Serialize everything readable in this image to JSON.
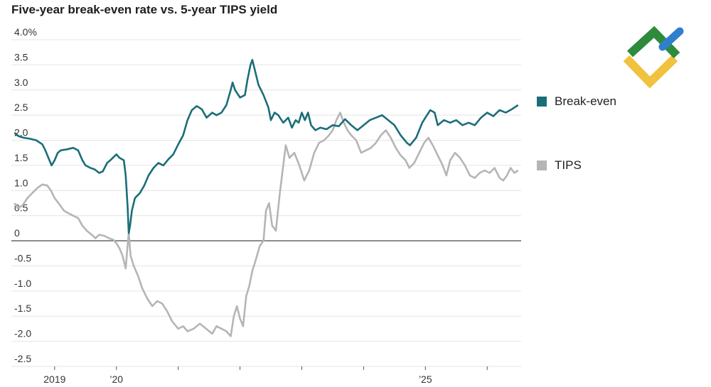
{
  "chart_data": {
    "type": "line",
    "title": "Five-year break-even rate vs. 5-year TIPS yield",
    "xlabel": "",
    "ylabel": "",
    "xlim": [
      2018.3,
      2026.55
    ],
    "ylim": [
      -2.5,
      4.0
    ],
    "y_ticks": [
      {
        "value": 4.0,
        "label": "4.0%"
      },
      {
        "value": 3.5,
        "label": "3.5"
      },
      {
        "value": 3.0,
        "label": "3.0"
      },
      {
        "value": 2.5,
        "label": "2.5"
      },
      {
        "value": 2.0,
        "label": "2.0"
      },
      {
        "value": 1.5,
        "label": "1.5"
      },
      {
        "value": 1.0,
        "label": "1.0"
      },
      {
        "value": 0.5,
        "label": "0.5"
      },
      {
        "value": 0,
        "label": "0"
      },
      {
        "value": -0.5,
        "label": "-0.5"
      },
      {
        "value": -1.0,
        "label": "-1.0"
      },
      {
        "value": -1.5,
        "label": "-1.5"
      },
      {
        "value": -2.0,
        "label": "-2.0"
      },
      {
        "value": -2.5,
        "label": "-2.5"
      }
    ],
    "x_ticks": [
      {
        "value": 2019,
        "label": "2019"
      },
      {
        "value": 2020,
        "label": "’20"
      },
      {
        "value": 2021,
        "label": ""
      },
      {
        "value": 2022,
        "label": ""
      },
      {
        "value": 2023,
        "label": ""
      },
      {
        "value": 2024,
        "label": ""
      },
      {
        "value": 2025,
        "label": "’25"
      },
      {
        "value": 2026,
        "label": ""
      }
    ],
    "grid": true,
    "legend_position": "right",
    "series": [
      {
        "name": "Break-even",
        "color": "#1a6e78",
        "points": [
          [
            2018.35,
            2.15
          ],
          [
            2018.42,
            2.08
          ],
          [
            2018.5,
            2.05
          ],
          [
            2018.6,
            2.03
          ],
          [
            2018.7,
            2.0
          ],
          [
            2018.8,
            1.92
          ],
          [
            2018.85,
            1.8
          ],
          [
            2018.9,
            1.65
          ],
          [
            2018.95,
            1.5
          ],
          [
            2019.0,
            1.6
          ],
          [
            2019.05,
            1.75
          ],
          [
            2019.1,
            1.8
          ],
          [
            2019.2,
            1.82
          ],
          [
            2019.3,
            1.85
          ],
          [
            2019.38,
            1.8
          ],
          [
            2019.45,
            1.6
          ],
          [
            2019.5,
            1.5
          ],
          [
            2019.58,
            1.45
          ],
          [
            2019.65,
            1.42
          ],
          [
            2019.72,
            1.35
          ],
          [
            2019.78,
            1.38
          ],
          [
            2019.85,
            1.55
          ],
          [
            2019.9,
            1.6
          ],
          [
            2019.95,
            1.66
          ],
          [
            2020.0,
            1.72
          ],
          [
            2020.05,
            1.65
          ],
          [
            2020.12,
            1.6
          ],
          [
            2020.15,
            1.3
          ],
          [
            2020.18,
            0.7
          ],
          [
            2020.2,
            0.15
          ],
          [
            2020.22,
            0.3
          ],
          [
            2020.25,
            0.6
          ],
          [
            2020.3,
            0.85
          ],
          [
            2020.38,
            0.95
          ],
          [
            2020.45,
            1.1
          ],
          [
            2020.52,
            1.3
          ],
          [
            2020.6,
            1.45
          ],
          [
            2020.68,
            1.55
          ],
          [
            2020.76,
            1.5
          ],
          [
            2020.84,
            1.62
          ],
          [
            2020.92,
            1.72
          ],
          [
            2021.0,
            1.92
          ],
          [
            2021.08,
            2.1
          ],
          [
            2021.15,
            2.4
          ],
          [
            2021.22,
            2.6
          ],
          [
            2021.3,
            2.68
          ],
          [
            2021.38,
            2.62
          ],
          [
            2021.46,
            2.45
          ],
          [
            2021.55,
            2.55
          ],
          [
            2021.62,
            2.5
          ],
          [
            2021.7,
            2.55
          ],
          [
            2021.78,
            2.7
          ],
          [
            2021.85,
            3.0
          ],
          [
            2021.88,
            3.15
          ],
          [
            2021.92,
            3.0
          ],
          [
            2022.0,
            2.85
          ],
          [
            2022.08,
            2.9
          ],
          [
            2022.12,
            3.2
          ],
          [
            2022.17,
            3.5
          ],
          [
            2022.2,
            3.6
          ],
          [
            2022.24,
            3.4
          ],
          [
            2022.3,
            3.1
          ],
          [
            2022.38,
            2.9
          ],
          [
            2022.46,
            2.65
          ],
          [
            2022.5,
            2.4
          ],
          [
            2022.56,
            2.55
          ],
          [
            2022.62,
            2.5
          ],
          [
            2022.7,
            2.35
          ],
          [
            2022.78,
            2.45
          ],
          [
            2022.84,
            2.25
          ],
          [
            2022.9,
            2.4
          ],
          [
            2022.95,
            2.35
          ],
          [
            2023.0,
            2.55
          ],
          [
            2023.05,
            2.4
          ],
          [
            2023.1,
            2.55
          ],
          [
            2023.15,
            2.3
          ],
          [
            2023.22,
            2.2
          ],
          [
            2023.3,
            2.25
          ],
          [
            2023.4,
            2.22
          ],
          [
            2023.5,
            2.3
          ],
          [
            2023.6,
            2.28
          ],
          [
            2023.7,
            2.42
          ],
          [
            2023.8,
            2.3
          ],
          [
            2023.9,
            2.2
          ],
          [
            2024.0,
            2.3
          ],
          [
            2024.1,
            2.4
          ],
          [
            2024.2,
            2.45
          ],
          [
            2024.3,
            2.5
          ],
          [
            2024.4,
            2.4
          ],
          [
            2024.5,
            2.3
          ],
          [
            2024.6,
            2.1
          ],
          [
            2024.7,
            1.95
          ],
          [
            2024.75,
            1.9
          ],
          [
            2024.85,
            2.05
          ],
          [
            2024.95,
            2.35
          ],
          [
            2025.0,
            2.45
          ],
          [
            2025.08,
            2.6
          ],
          [
            2025.15,
            2.55
          ],
          [
            2025.2,
            2.3
          ],
          [
            2025.3,
            2.4
          ],
          [
            2025.4,
            2.35
          ],
          [
            2025.5,
            2.4
          ],
          [
            2025.6,
            2.3
          ],
          [
            2025.7,
            2.35
          ],
          [
            2025.8,
            2.3
          ],
          [
            2025.9,
            2.45
          ],
          [
            2026.0,
            2.55
          ],
          [
            2026.1,
            2.48
          ],
          [
            2026.2,
            2.6
          ],
          [
            2026.3,
            2.55
          ],
          [
            2026.4,
            2.62
          ],
          [
            2026.5,
            2.7
          ]
        ]
      },
      {
        "name": "TIPS",
        "color": "#b5b5b5",
        "points": [
          [
            2018.35,
            0.75
          ],
          [
            2018.4,
            0.65
          ],
          [
            2018.48,
            0.7
          ],
          [
            2018.56,
            0.85
          ],
          [
            2018.64,
            0.95
          ],
          [
            2018.72,
            1.05
          ],
          [
            2018.8,
            1.12
          ],
          [
            2018.88,
            1.1
          ],
          [
            2018.94,
            1.0
          ],
          [
            2019.0,
            0.85
          ],
          [
            2019.08,
            0.72
          ],
          [
            2019.15,
            0.6
          ],
          [
            2019.22,
            0.55
          ],
          [
            2019.3,
            0.5
          ],
          [
            2019.38,
            0.45
          ],
          [
            2019.45,
            0.3
          ],
          [
            2019.52,
            0.2
          ],
          [
            2019.6,
            0.12
          ],
          [
            2019.66,
            0.05
          ],
          [
            2019.72,
            0.12
          ],
          [
            2019.8,
            0.1
          ],
          [
            2019.88,
            0.05
          ],
          [
            2019.95,
            0.02
          ],
          [
            2020.0,
            -0.05
          ],
          [
            2020.05,
            -0.15
          ],
          [
            2020.1,
            -0.3
          ],
          [
            2020.15,
            -0.55
          ],
          [
            2020.18,
            -0.1
          ],
          [
            2020.2,
            0.15
          ],
          [
            2020.23,
            -0.3
          ],
          [
            2020.28,
            -0.5
          ],
          [
            2020.35,
            -0.7
          ],
          [
            2020.42,
            -0.95
          ],
          [
            2020.5,
            -1.15
          ],
          [
            2020.58,
            -1.3
          ],
          [
            2020.66,
            -1.2
          ],
          [
            2020.74,
            -1.25
          ],
          [
            2020.82,
            -1.4
          ],
          [
            2020.9,
            -1.6
          ],
          [
            2021.0,
            -1.75
          ],
          [
            2021.08,
            -1.7
          ],
          [
            2021.15,
            -1.8
          ],
          [
            2021.25,
            -1.75
          ],
          [
            2021.35,
            -1.65
          ],
          [
            2021.45,
            -1.75
          ],
          [
            2021.55,
            -1.85
          ],
          [
            2021.62,
            -1.7
          ],
          [
            2021.7,
            -1.75
          ],
          [
            2021.78,
            -1.8
          ],
          [
            2021.85,
            -1.9
          ],
          [
            2021.9,
            -1.5
          ],
          [
            2021.95,
            -1.3
          ],
          [
            2022.0,
            -1.55
          ],
          [
            2022.05,
            -1.7
          ],
          [
            2022.1,
            -1.1
          ],
          [
            2022.15,
            -0.9
          ],
          [
            2022.2,
            -0.6
          ],
          [
            2022.25,
            -0.4
          ],
          [
            2022.32,
            -0.1
          ],
          [
            2022.38,
            0.0
          ],
          [
            2022.42,
            0.6
          ],
          [
            2022.47,
            0.75
          ],
          [
            2022.52,
            0.3
          ],
          [
            2022.58,
            0.2
          ],
          [
            2022.64,
            0.9
          ],
          [
            2022.7,
            1.5
          ],
          [
            2022.74,
            1.9
          ],
          [
            2022.8,
            1.65
          ],
          [
            2022.88,
            1.75
          ],
          [
            2022.96,
            1.5
          ],
          [
            2023.04,
            1.2
          ],
          [
            2023.12,
            1.4
          ],
          [
            2023.2,
            1.75
          ],
          [
            2023.28,
            1.95
          ],
          [
            2023.36,
            2.0
          ],
          [
            2023.44,
            2.1
          ],
          [
            2023.5,
            2.2
          ],
          [
            2023.56,
            2.4
          ],
          [
            2023.62,
            2.55
          ],
          [
            2023.68,
            2.35
          ],
          [
            2023.74,
            2.2
          ],
          [
            2023.8,
            2.1
          ],
          [
            2023.88,
            2.0
          ],
          [
            2023.96,
            1.75
          ],
          [
            2024.04,
            1.8
          ],
          [
            2024.12,
            1.85
          ],
          [
            2024.2,
            1.95
          ],
          [
            2024.28,
            2.1
          ],
          [
            2024.36,
            2.2
          ],
          [
            2024.44,
            2.05
          ],
          [
            2024.52,
            1.85
          ],
          [
            2024.6,
            1.7
          ],
          [
            2024.68,
            1.6
          ],
          [
            2024.74,
            1.45
          ],
          [
            2024.82,
            1.55
          ],
          [
            2024.9,
            1.75
          ],
          [
            2024.98,
            1.95
          ],
          [
            2025.05,
            2.05
          ],
          [
            2025.12,
            1.9
          ],
          [
            2025.2,
            1.7
          ],
          [
            2025.28,
            1.5
          ],
          [
            2025.34,
            1.3
          ],
          [
            2025.4,
            1.6
          ],
          [
            2025.48,
            1.75
          ],
          [
            2025.56,
            1.65
          ],
          [
            2025.64,
            1.5
          ],
          [
            2025.72,
            1.3
          ],
          [
            2025.8,
            1.25
          ],
          [
            2025.88,
            1.35
          ],
          [
            2025.96,
            1.4
          ],
          [
            2026.04,
            1.35
          ],
          [
            2026.12,
            1.45
          ],
          [
            2026.2,
            1.25
          ],
          [
            2026.26,
            1.2
          ],
          [
            2026.32,
            1.3
          ],
          [
            2026.38,
            1.45
          ],
          [
            2026.44,
            1.35
          ],
          [
            2026.5,
            1.4
          ]
        ]
      }
    ]
  },
  "logo": {
    "name": "brand-logo"
  }
}
